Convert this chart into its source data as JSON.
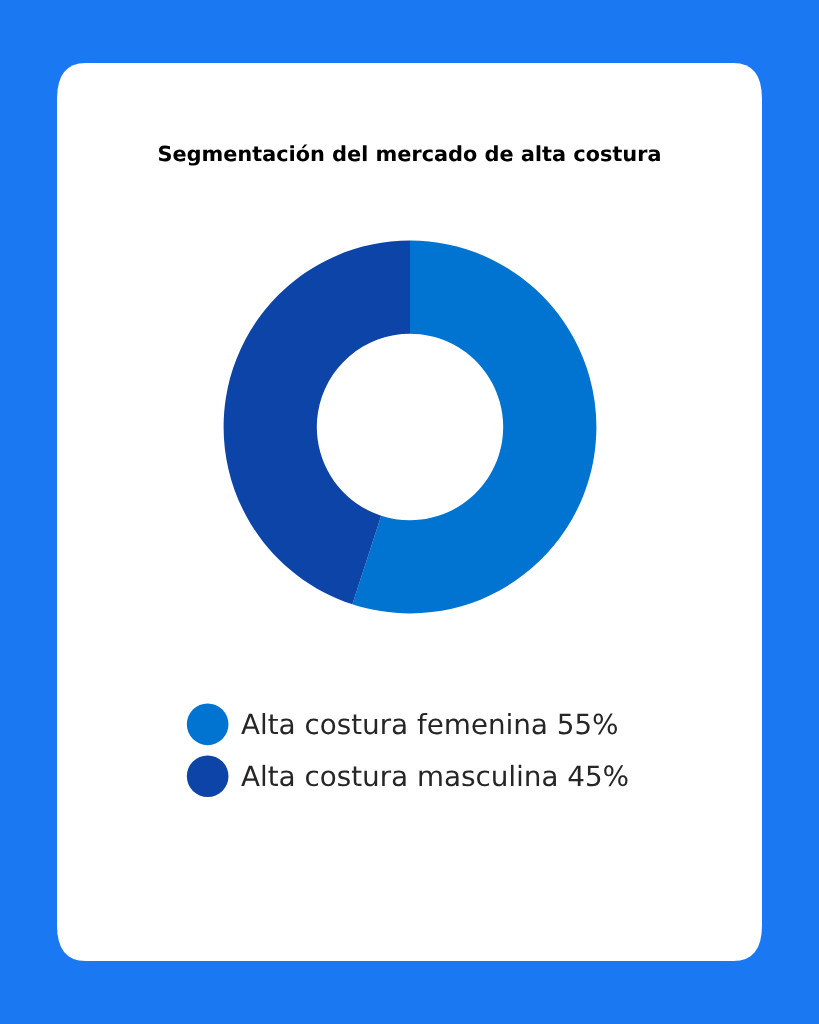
{
  "chart_data": {
    "type": "donut",
    "title": "Segmentación del mercado de alta costura",
    "categories": [
      "Alta costura femenina",
      "Alta costura masculina"
    ],
    "values": [
      55,
      45
    ],
    "value_labels": [
      "55%",
      "45%"
    ],
    "colors": [
      "#0074d0",
      "#0d44a8"
    ],
    "legend": "bottom"
  }
}
